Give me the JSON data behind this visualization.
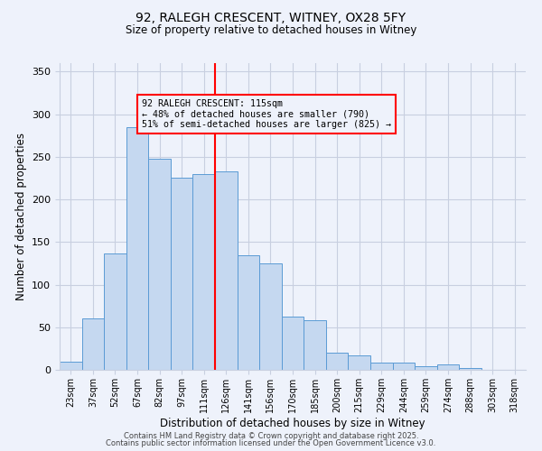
{
  "title1": "92, RALEGH CRESCENT, WITNEY, OX28 5FY",
  "title2": "Size of property relative to detached houses in Witney",
  "xlabel": "Distribution of detached houses by size in Witney",
  "ylabel": "Number of detached properties",
  "bar_labels": [
    "23sqm",
    "37sqm",
    "52sqm",
    "67sqm",
    "82sqm",
    "97sqm",
    "111sqm",
    "126sqm",
    "141sqm",
    "156sqm",
    "170sqm",
    "185sqm",
    "200sqm",
    "215sqm",
    "229sqm",
    "244sqm",
    "259sqm",
    "274sqm",
    "288sqm",
    "303sqm",
    "318sqm"
  ],
  "bar_heights": [
    10,
    60,
    137,
    285,
    248,
    225,
    230,
    233,
    135,
    125,
    62,
    58,
    20,
    17,
    9,
    9,
    4,
    6,
    2,
    0,
    0
  ],
  "bar_color": "#c5d8f0",
  "bar_edge_color": "#5b9bd5",
  "ylim": [
    0,
    360
  ],
  "yticks": [
    0,
    50,
    100,
    150,
    200,
    250,
    300,
    350
  ],
  "marker_label": "92 RALEGH CRESCENT: 115sqm",
  "annotation_line1": "← 48% of detached houses are smaller (790)",
  "annotation_line2": "51% of semi-detached houses are larger (825) →",
  "footer1": "Contains HM Land Registry data © Crown copyright and database right 2025.",
  "footer2": "Contains public sector information licensed under the Open Government Licence v3.0.",
  "bg_color": "#eef2fb",
  "grid_color": "#c8cfe0",
  "marker_bar_index": 6
}
